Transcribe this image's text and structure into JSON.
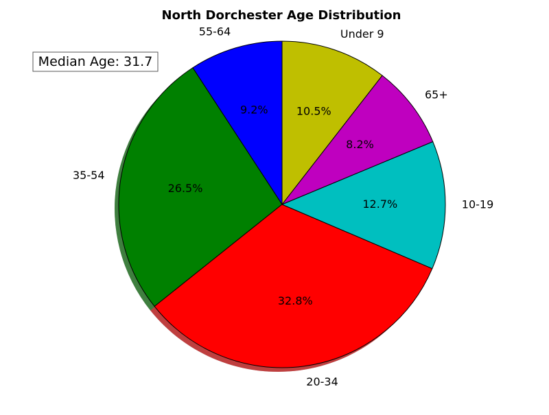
{
  "chart_data": {
    "type": "pie",
    "title": "North Dorchester Age Distribution",
    "start_angle_deg": 90,
    "direction": "counterclockwise",
    "shadow": true,
    "categories": [
      "Under 9",
      "10-19",
      "20-34",
      "35-54",
      "55-64",
      "65+"
    ],
    "values": [
      10.5,
      12.7,
      32.8,
      26.5,
      9.2,
      8.2
    ],
    "value_labels": [
      "10.5%",
      "12.7%",
      "32.8%",
      "26.5%",
      "9.2%",
      "8.2%"
    ],
    "slice_order": [
      "55-64",
      "35-54",
      "20-34",
      "10-19",
      "65+",
      "Under 9"
    ],
    "colors": {
      "Under 9": "#bfbf00",
      "10-19": "#00bfbf",
      "20-34": "#ff0000",
      "35-54": "#008000",
      "55-64": "#0000ff",
      "65+": "#bf00bf"
    },
    "annotation": "Median Age: 31.7"
  }
}
